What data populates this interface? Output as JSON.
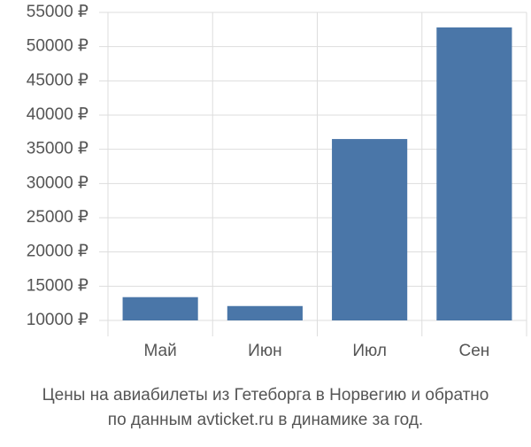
{
  "chart_data": {
    "type": "bar",
    "title": [
      "Цены на авиабилеты из Гетеборга в Норвегию и обратно",
      "по данным avticket.ru в динамике за год."
    ],
    "categories": [
      "Май",
      "Июн",
      "Июл",
      "Сен"
    ],
    "values": [
      13400,
      12100,
      36500,
      52800
    ],
    "color": "#4a76a8",
    "ylim": [
      10000,
      55000
    ],
    "yticks": [
      {
        "value": 10000,
        "label": "10000 ₽"
      },
      {
        "value": 15000,
        "label": "15000 ₽"
      },
      {
        "value": 20000,
        "label": "20000 ₽"
      },
      {
        "value": 25000,
        "label": "25000 ₽"
      },
      {
        "value": 30000,
        "label": "30000 ₽"
      },
      {
        "value": 35000,
        "label": "35000 ₽"
      },
      {
        "value": 40000,
        "label": "40000 ₽"
      },
      {
        "value": 45000,
        "label": "45000 ₽"
      },
      {
        "value": 50000,
        "label": "50000 ₽"
      },
      {
        "value": 55000,
        "label": "55000 ₽"
      }
    ],
    "grid": true
  }
}
